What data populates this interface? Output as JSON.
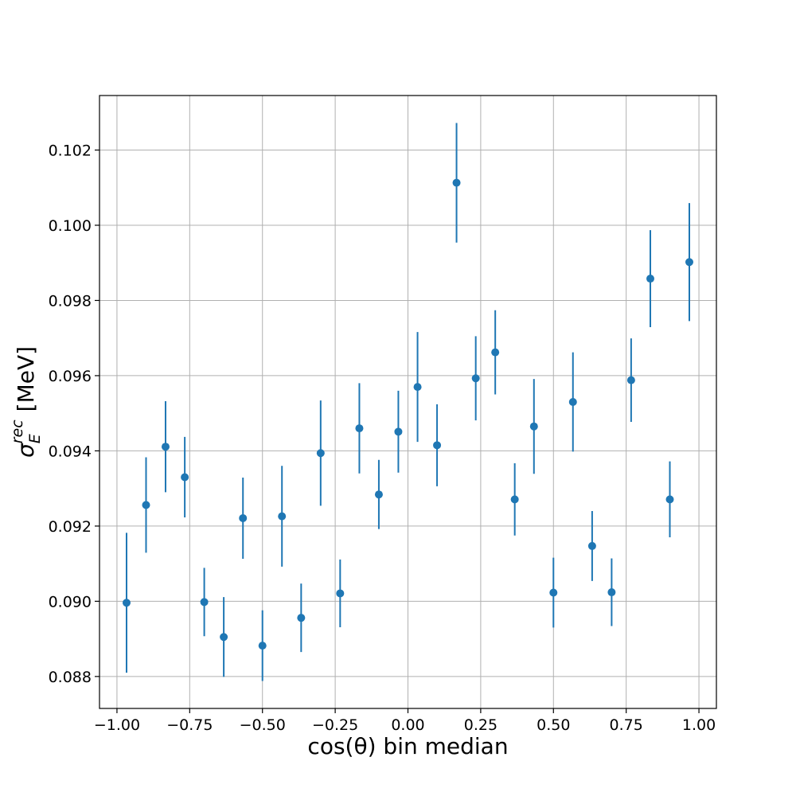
{
  "chart_data": {
    "type": "scatter",
    "xlabel": "cos(θ) bin median",
    "ylabel_symbol": "σ",
    "ylabel_superscript": "rec",
    "ylabel_subscript": "E",
    "ylabel_unit": "[MeV]",
    "xlim": [
      -1.06,
      1.06
    ],
    "ylim": [
      0.08715,
      0.10345
    ],
    "xticks": [
      -1.0,
      -0.75,
      -0.5,
      -0.25,
      0.0,
      0.25,
      0.5,
      0.75,
      1.0
    ],
    "xtick_labels": [
      "−1.00",
      "−0.75",
      "−0.50",
      "−0.25",
      "0.00",
      "0.25",
      "0.50",
      "0.75",
      "1.00"
    ],
    "yticks": [
      0.088,
      0.09,
      0.092,
      0.094,
      0.096,
      0.098,
      0.1,
      0.102
    ],
    "ytick_labels": [
      "0.088",
      "0.090",
      "0.092",
      "0.094",
      "0.096",
      "0.098",
      "0.100",
      "0.102"
    ],
    "grid": true,
    "color": "#1f77b4",
    "points": [
      {
        "x": -0.967,
        "y": 0.08996,
        "err": 0.00186
      },
      {
        "x": -0.9,
        "y": 0.09256,
        "err": 0.00127
      },
      {
        "x": -0.833,
        "y": 0.09411,
        "err": 0.00121
      },
      {
        "x": -0.767,
        "y": 0.0933,
        "err": 0.00107
      },
      {
        "x": -0.7,
        "y": 0.08998,
        "err": 0.00091
      },
      {
        "x": -0.633,
        "y": 0.08905,
        "err": 0.00106
      },
      {
        "x": -0.567,
        "y": 0.09221,
        "err": 0.00108
      },
      {
        "x": -0.5,
        "y": 0.08882,
        "err": 0.00094
      },
      {
        "x": -0.433,
        "y": 0.09226,
        "err": 0.00134
      },
      {
        "x": -0.367,
        "y": 0.08956,
        "err": 0.00091
      },
      {
        "x": -0.3,
        "y": 0.09394,
        "err": 0.0014
      },
      {
        "x": -0.233,
        "y": 0.09021,
        "err": 0.0009
      },
      {
        "x": -0.167,
        "y": 0.0946,
        "err": 0.0012
      },
      {
        "x": -0.1,
        "y": 0.09284,
        "err": 0.00092
      },
      {
        "x": -0.033,
        "y": 0.09451,
        "err": 0.00109
      },
      {
        "x": 0.033,
        "y": 0.0957,
        "err": 0.00146
      },
      {
        "x": 0.1,
        "y": 0.09415,
        "err": 0.00109
      },
      {
        "x": 0.167,
        "y": 0.10113,
        "err": 0.00159
      },
      {
        "x": 0.233,
        "y": 0.09593,
        "err": 0.00112
      },
      {
        "x": 0.3,
        "y": 0.09662,
        "err": 0.00112
      },
      {
        "x": 0.367,
        "y": 0.09271,
        "err": 0.00096
      },
      {
        "x": 0.433,
        "y": 0.09465,
        "err": 0.00126
      },
      {
        "x": 0.5,
        "y": 0.09023,
        "err": 0.00093
      },
      {
        "x": 0.567,
        "y": 0.0953,
        "err": 0.00132
      },
      {
        "x": 0.633,
        "y": 0.09147,
        "err": 0.00093
      },
      {
        "x": 0.7,
        "y": 0.09024,
        "err": 0.0009
      },
      {
        "x": 0.767,
        "y": 0.09588,
        "err": 0.00111
      },
      {
        "x": 0.833,
        "y": 0.09858,
        "err": 0.00129
      },
      {
        "x": 0.9,
        "y": 0.09271,
        "err": 0.00101
      },
      {
        "x": 0.967,
        "y": 0.09902,
        "err": 0.00157
      }
    ]
  }
}
